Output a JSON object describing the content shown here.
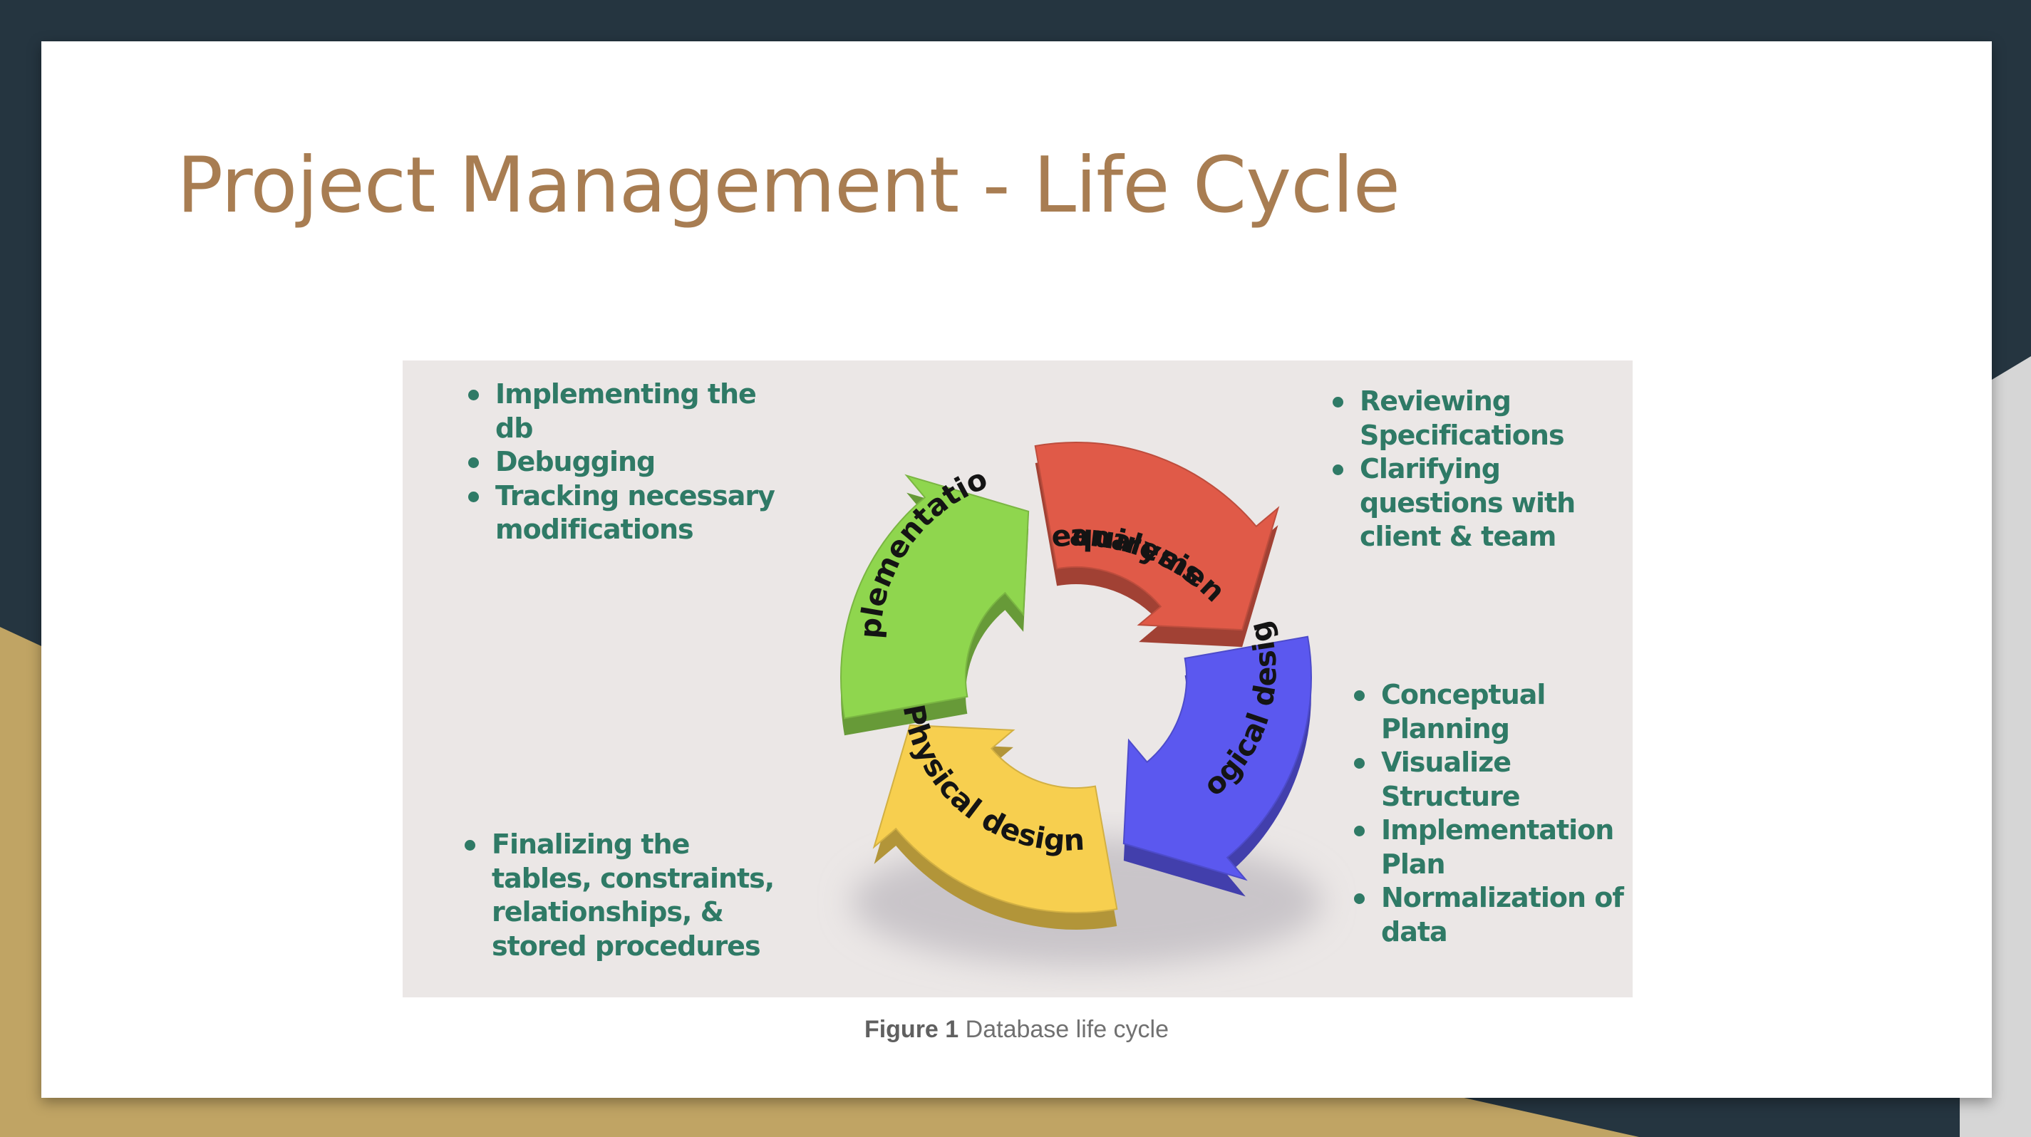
{
  "title": "Project Management - Life Cycle",
  "colors": {
    "background_dark": "#253540",
    "background_gold": "#c0a464",
    "title": "#a87d52",
    "notes_text": "#2f7a66",
    "figure_bg": "#ebe7e6",
    "stage_requirement": "#e05a48",
    "stage_logical": "#5b58ef",
    "stage_physical": "#f7cf4f",
    "stage_implementation": "#8fd64e"
  },
  "diagram": {
    "stages": [
      {
        "id": "requirement",
        "line1": "Requirement",
        "line2": "analysis"
      },
      {
        "id": "logical",
        "label": "Logical design"
      },
      {
        "id": "physical",
        "label": "Physical design"
      },
      {
        "id": "implementation",
        "label": "Implementation"
      }
    ],
    "notes": {
      "implementation": [
        "Implementing the db",
        "Debugging",
        "Tracking necessary modifications"
      ],
      "requirement": [
        "Reviewing Specifications",
        "Clarifying questions with client & team"
      ],
      "logical": [
        "Conceptual Planning",
        "Visualize Structure",
        "Implementation Plan",
        "Normalization of data"
      ],
      "physical": [
        "Finalizing the tables, constraints, relationships, & stored procedures"
      ]
    }
  },
  "caption": {
    "label": "Figure 1",
    "text": "Database life cycle"
  }
}
